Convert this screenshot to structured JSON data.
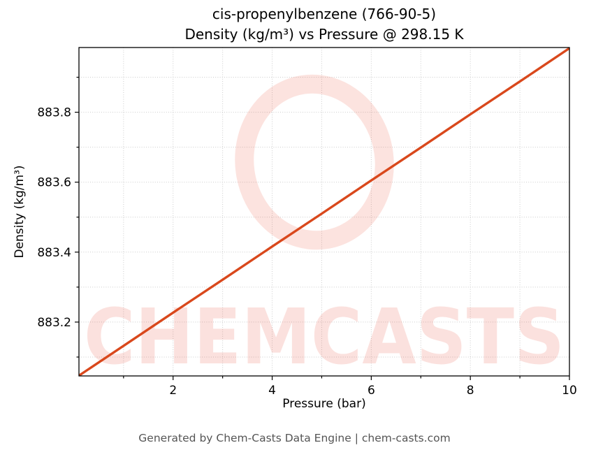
{
  "title": {
    "line1": "cis-propenylbenzene (766-90-5)",
    "line2": "Density (kg/m³) vs Pressure @ 298.15 K"
  },
  "footer": "Generated by Chem-Casts Data Engine | chem-casts.com",
  "watermark": {
    "text": "CHEMCASTS",
    "color": "#e8402a",
    "opacity": 0.15
  },
  "chart_data": {
    "type": "line",
    "title": "cis-propenylbenzene (766-90-5) Density (kg/m³) vs Pressure @ 298.15 K",
    "xlabel": "Pressure (bar)",
    "ylabel": "Density (kg/m³)",
    "x": [
      0.1,
      1,
      2,
      3,
      4,
      5,
      6,
      7,
      8,
      9,
      10
    ],
    "y": [
      883.047,
      883.132,
      883.227,
      883.321,
      883.416,
      883.51,
      883.605,
      883.699,
      883.794,
      883.888,
      883.983
    ],
    "xlim": [
      0.1,
      10
    ],
    "ylim": [
      883.046,
      883.985
    ],
    "x_ticks": [
      2,
      4,
      6,
      8,
      10
    ],
    "y_ticks": [
      883.2,
      883.4,
      883.6,
      883.8
    ],
    "x_minor_step": 1,
    "y_minor_step": 0.1,
    "grid": true,
    "legend": "none",
    "line_color": "#d9481c",
    "grid_color": "#cccccc",
    "frame_color": "#000000"
  }
}
